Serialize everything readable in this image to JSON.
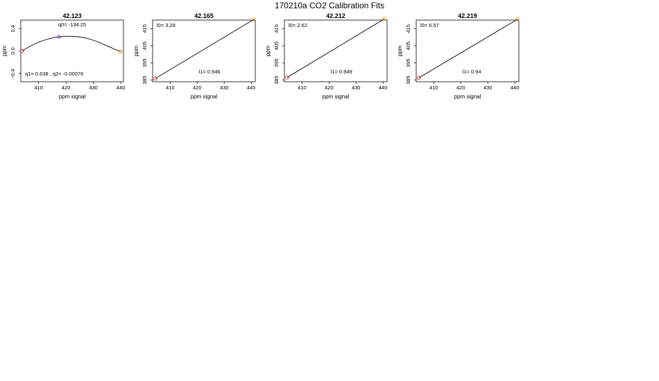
{
  "figure": {
    "title": "170210a   CO2 Calibration Fits"
  },
  "chart_data": [
    {
      "type": "line",
      "title": "42.123",
      "xlabel": "ppm signal",
      "ylabel": "ppm",
      "xlim": [
        403.5,
        441
      ],
      "ylim": [
        -0.55,
        0.55
      ],
      "xticks": [
        410,
        420,
        430,
        440
      ],
      "yticks": [
        -0.4,
        0.0,
        0.4
      ],
      "ytick_labels": [
        "-0.4",
        "0.0",
        "0.4"
      ],
      "curve": [
        [
          404,
          0.0
        ],
        [
          406,
          0.06
        ],
        [
          408,
          0.11
        ],
        [
          410,
          0.155
        ],
        [
          412,
          0.19
        ],
        [
          414,
          0.22
        ],
        [
          416,
          0.24
        ],
        [
          418,
          0.255
        ],
        [
          420,
          0.262
        ],
        [
          422,
          0.262
        ],
        [
          424,
          0.255
        ],
        [
          426,
          0.24
        ],
        [
          428,
          0.22
        ],
        [
          430,
          0.19
        ],
        [
          432,
          0.155
        ],
        [
          434,
          0.11
        ],
        [
          436,
          0.07
        ],
        [
          438,
          0.025
        ],
        [
          440,
          -0.01
        ]
      ],
      "points": [
        {
          "x": 404,
          "y": 0.0,
          "color": "#d62728"
        },
        {
          "x": 417.4,
          "y": 0.25,
          "color": "#7b3fc4"
        },
        {
          "x": 440,
          "y": -0.01,
          "color": "#ff8c00"
        }
      ],
      "annotations": [
        {
          "text": "q0= -134.25",
          "pos": "top-center"
        },
        {
          "text": "q1= 0.638 , q2= -0.00076",
          "pos": "bottom-left"
        }
      ]
    },
    {
      "type": "line",
      "title": "42.165",
      "xlabel": "ppm signal",
      "ylabel": "ppm",
      "xlim": [
        403.5,
        441.5
      ],
      "ylim": [
        384,
        420
      ],
      "xticks": [
        410,
        420,
        430,
        440
      ],
      "yticks": [
        385,
        395,
        405,
        415
      ],
      "ytick_labels": [
        "385",
        "395",
        "405",
        "415"
      ],
      "curve": [
        [
          404.5,
          385.9
        ],
        [
          441,
          420.4
        ]
      ],
      "points": [
        {
          "x": 404.5,
          "y": 385.9,
          "color": "#d62728"
        },
        {
          "x": 441,
          "y": 420.4,
          "color": "#ff8c00"
        }
      ],
      "annotations": [
        {
          "text": "l0=  3.28",
          "pos": "top-left"
        },
        {
          "text": "l1=  0.946",
          "pos": "bottom-right"
        }
      ]
    },
    {
      "type": "line",
      "title": "42.212",
      "xlabel": "ppm signal",
      "ylabel": "ppm",
      "xlim": [
        403.5,
        441.5
      ],
      "ylim": [
        384,
        420
      ],
      "xticks": [
        410,
        420,
        430,
        440
      ],
      "yticks": [
        385,
        395,
        405,
        415
      ],
      "ytick_labels": [
        "385",
        "395",
        "405",
        "415"
      ],
      "curve": [
        [
          404.5,
          386.5
        ],
        [
          440.5,
          420.7
        ]
      ],
      "points": [
        {
          "x": 404.5,
          "y": 386.5,
          "color": "#d62728"
        },
        {
          "x": 440.5,
          "y": 420.7,
          "color": "#ff8c00"
        }
      ],
      "annotations": [
        {
          "text": "l0=  2.62",
          "pos": "top-left"
        },
        {
          "text": "l1=  0.949",
          "pos": "bottom-right"
        }
      ]
    },
    {
      "type": "line",
      "title": "42.219",
      "xlabel": "ppm signal",
      "ylabel": "ppm",
      "xlim": [
        403.5,
        441.5
      ],
      "ylim": [
        384,
        420
      ],
      "xticks": [
        410,
        420,
        430,
        440
      ],
      "yticks": [
        385,
        395,
        405,
        415
      ],
      "ytick_labels": [
        "385",
        "395",
        "405",
        "415"
      ],
      "curve": [
        [
          404.5,
          386.3
        ],
        [
          441,
          420.5
        ]
      ],
      "points": [
        {
          "x": 404.5,
          "y": 386.3,
          "color": "#d62728"
        },
        {
          "x": 441,
          "y": 420.5,
          "color": "#ff8c00"
        }
      ],
      "annotations": [
        {
          "text": "l0=  6.57",
          "pos": "top-left"
        },
        {
          "text": "l1=  0.94",
          "pos": "bottom-right"
        }
      ]
    }
  ]
}
